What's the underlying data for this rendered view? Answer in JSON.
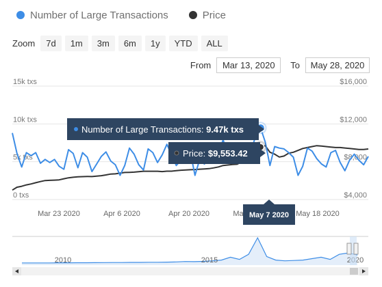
{
  "legend": [
    {
      "label": "Number of Large Transactions",
      "color": "#3d8de6"
    },
    {
      "label": "Price",
      "color": "#333333"
    }
  ],
  "zoom": {
    "label": "Zoom",
    "buttons": [
      "7d",
      "1m",
      "3m",
      "6m",
      "1y",
      "YTD",
      "ALL"
    ]
  },
  "range": {
    "from_label": "From",
    "from_value": "Mar 13, 2020",
    "to_label": "To",
    "to_value": "May 28, 2020"
  },
  "tooltip": {
    "series1_label": "Number of Large Transactions:",
    "series1_value": "9.47k txs",
    "series2_label": "Price:",
    "series2_value": "$9,553.42",
    "date": "May 7 2020"
  },
  "chart_data": {
    "type": "line",
    "title": "",
    "x_start": "2020-03-13",
    "x_end": "2020-05-28",
    "xticks": [
      "Mar 23 2020",
      "Apr 6 2020",
      "Apr 20 2020",
      "Ma",
      "May 18 2020"
    ],
    "y_left": {
      "ticks": [
        "0 txs",
        "5k txs",
        "10k txs",
        "15k txs"
      ],
      "range": [
        0,
        15000
      ]
    },
    "y_right": {
      "ticks": [
        "$4,000",
        "$8,000",
        "$12,000",
        "$16,000"
      ],
      "range": [
        4000,
        16000
      ]
    },
    "series": [
      {
        "name": "Number of Large Transactions",
        "axis": "left",
        "color": "#3d8de6",
        "values": [
          8800,
          6100,
          4300,
          6200,
          5800,
          6200,
          4800,
          5300,
          4900,
          5300,
          4400,
          4000,
          6600,
          6100,
          4200,
          6200,
          5600,
          3700,
          4700,
          5700,
          6300,
          5100,
          4600,
          3200,
          4500,
          6800,
          6000,
          4600,
          3900,
          6700,
          6200,
          4900,
          5900,
          7300,
          5900,
          4500,
          5200,
          5800,
          6300,
          3200,
          5300,
          4700,
          5300,
          6300,
          6200,
          7900,
          6000,
          5400,
          6300,
          5800,
          6700,
          6300,
          8600,
          9470,
          7600,
          4500,
          7000,
          6800,
          6700,
          6200,
          5600,
          3200,
          4400,
          6800,
          6400,
          5400,
          4700,
          4300,
          6200,
          6500,
          4900,
          3800,
          5200,
          6000,
          5200,
          4600,
          5700
        ]
      },
      {
        "name": "Price",
        "axis": "right",
        "color": "#333333",
        "values": [
          5000,
          5300,
          5400,
          5550,
          5650,
          5780,
          5900,
          6010,
          6030,
          6050,
          6080,
          6200,
          6300,
          6360,
          6400,
          6420,
          6440,
          6430,
          6470,
          6520,
          6600,
          6700,
          6720,
          6790,
          6860,
          6880,
          6900,
          6950,
          6990,
          6990,
          6990,
          6990,
          6960,
          7000,
          7000,
          7050,
          7100,
          7120,
          7150,
          7170,
          7210,
          7240,
          7270,
          7350,
          7450,
          7600,
          7650,
          7700,
          7730,
          8000,
          8400,
          8700,
          9000,
          9553,
          9700,
          9000,
          8800,
          8500,
          8600,
          8900,
          9000,
          9200,
          9400,
          9500,
          9600,
          9700,
          9650,
          9600,
          9550,
          9500,
          9500,
          9450,
          9400,
          9350,
          9300,
          9300,
          9350
        ]
      }
    ],
    "navigator": {
      "labels": [
        "2010",
        "2015",
        "2020"
      ],
      "values": [
        300,
        300,
        300,
        300,
        320,
        320,
        330,
        330,
        340,
        350,
        360,
        360,
        380,
        380,
        400,
        400,
        420,
        450,
        500,
        480,
        520,
        600,
        700,
        1100,
        800,
        1500,
        3800,
        1200,
        700,
        600,
        650,
        700,
        900,
        1100,
        800,
        1500,
        1700,
        1400
      ]
    }
  }
}
